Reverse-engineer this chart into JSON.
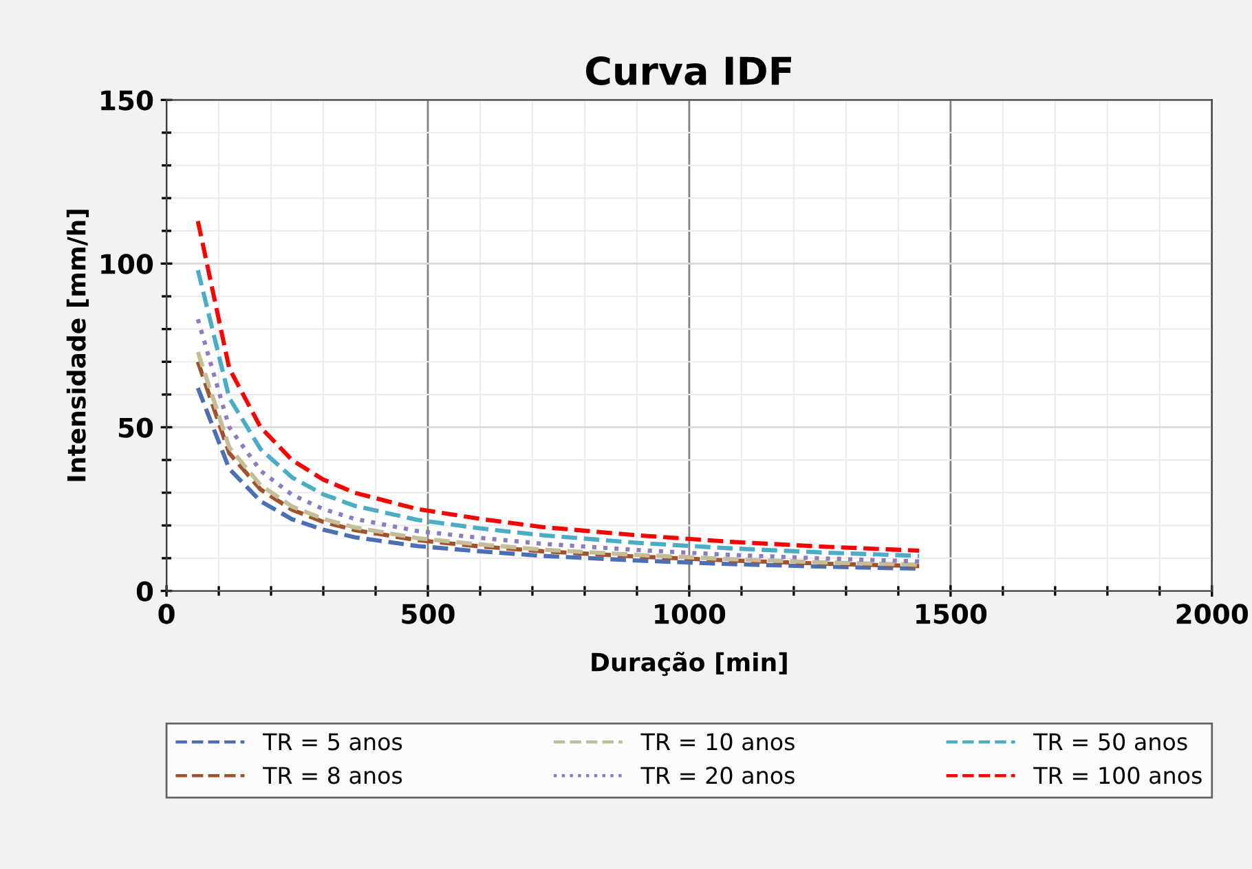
{
  "chart_data": {
    "type": "line",
    "title": "Curva IDF",
    "xlabel": "Duração [min]",
    "ylabel": "Intensidade [mm/h]",
    "x": [
      60,
      120,
      180,
      240,
      300,
      360,
      480,
      600,
      720,
      900,
      1080,
      1260,
      1440
    ],
    "series": [
      {
        "name": "TR = 5 anos",
        "color": "#4a6fb5",
        "line_style": "dashed",
        "values": [
          62,
          37.3,
          27.4,
          21.9,
          18.7,
          16.4,
          13.7,
          12.1,
          10.7,
          9.3,
          8.2,
          7.4,
          6.8
        ]
      },
      {
        "name": "TR = 8 anos",
        "color": "#a0522d",
        "line_style": "dashed",
        "values": [
          70,
          42.1,
          31.0,
          24.8,
          21.1,
          18.6,
          15.5,
          13.6,
          12.1,
          10.5,
          9.3,
          8.3,
          7.6
        ]
      },
      {
        "name": "TR = 10 anos",
        "color": "#c4bd97",
        "line_style": "dashed",
        "values": [
          73,
          43.9,
          32.3,
          25.8,
          22.0,
          19.4,
          16.1,
          14.2,
          12.6,
          11.0,
          9.7,
          8.7,
          8.0
        ]
      },
      {
        "name": "TR = 20 anos",
        "color": "#8e7cc3",
        "line_style": "dotted",
        "values": [
          83,
          50.0,
          36.7,
          29.4,
          25.0,
          22.0,
          18.3,
          16.2,
          14.4,
          12.5,
          11.0,
          9.9,
          9.0
        ]
      },
      {
        "name": "TR = 50 anos",
        "color": "#4bacc6",
        "line_style": "dashed",
        "values": [
          98,
          59.0,
          43.3,
          34.7,
          29.5,
          26.0,
          21.7,
          19.1,
          17.0,
          14.7,
          13.0,
          11.7,
          10.7
        ]
      },
      {
        "name": "TR = 100 anos",
        "color": "#ff0000",
        "line_style": "dashed",
        "values": [
          113,
          68,
          50,
          40,
          34,
          30,
          25,
          22,
          19.5,
          17,
          15,
          13.5,
          12.3
        ]
      }
    ],
    "xlim": [
      0,
      2000
    ],
    "xticks": [
      0,
      500,
      1000,
      1500,
      2000
    ],
    "ylim": [
      0,
      150
    ],
    "yticks": [
      0,
      50,
      100,
      150
    ],
    "grid": true,
    "legend": "bottom",
    "marker": "none"
  }
}
